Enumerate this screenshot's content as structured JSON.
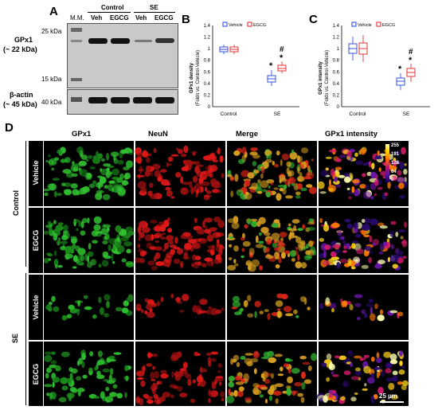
{
  "panelA": {
    "letter": "A",
    "mm_label": "M.M.",
    "groups": [
      "Control",
      "SE"
    ],
    "lanes": [
      "Veh",
      "EGCG",
      "Veh",
      "EGCG"
    ],
    "markers_top": [
      "25 kDa",
      "15 kDa"
    ],
    "marker_bottom": "40 kDa",
    "protein1": "GPx1",
    "protein1_size": "(~ 22 kDa)",
    "protein2": "β-actin",
    "protein2_size": "(~ 45 kDa)"
  },
  "panelB": {
    "letter": "B",
    "ylabel_line1": "GPx1 density",
    "ylabel_line2": "(Folds vs. Control-Vehicle)",
    "yticks": [
      "1.4",
      "1.2",
      "1",
      "0.8",
      "0.6",
      "0.4",
      "0.2",
      "0"
    ],
    "legend": [
      "Vehicle",
      "EGCG"
    ],
    "xticks": [
      "Control",
      "SE"
    ],
    "sig_star": "*",
    "sig_hash": "#"
  },
  "panelC": {
    "letter": "C",
    "ylabel_line1": "GPx1 intensity",
    "ylabel_line2": "(Folds vs. Control-Vehicle)",
    "yticks": [
      "1.4",
      "1.2",
      "1",
      "0.8",
      "0.6",
      "0.4",
      "0.2",
      "0"
    ],
    "legend": [
      "Vehicle",
      "EGCG"
    ],
    "xticks": [
      "Control",
      "SE"
    ],
    "sig_star": "*",
    "sig_hash": "#"
  },
  "panelD": {
    "letter": "D",
    "columns": [
      "GPx1",
      "NeuN",
      "Merge",
      "GPx1 intensity"
    ],
    "group_labels": [
      "Control",
      "SE"
    ],
    "row_labels": [
      "Vehicle",
      "EGCG",
      "Vehicle",
      "EGCG"
    ],
    "colorbar_ticks": [
      "255",
      "191",
      "128",
      "64",
      "0"
    ],
    "scale_bar": "25 µm"
  },
  "colors": {
    "vehicle": "#1f3fe0",
    "egcg": "#e02020"
  }
}
